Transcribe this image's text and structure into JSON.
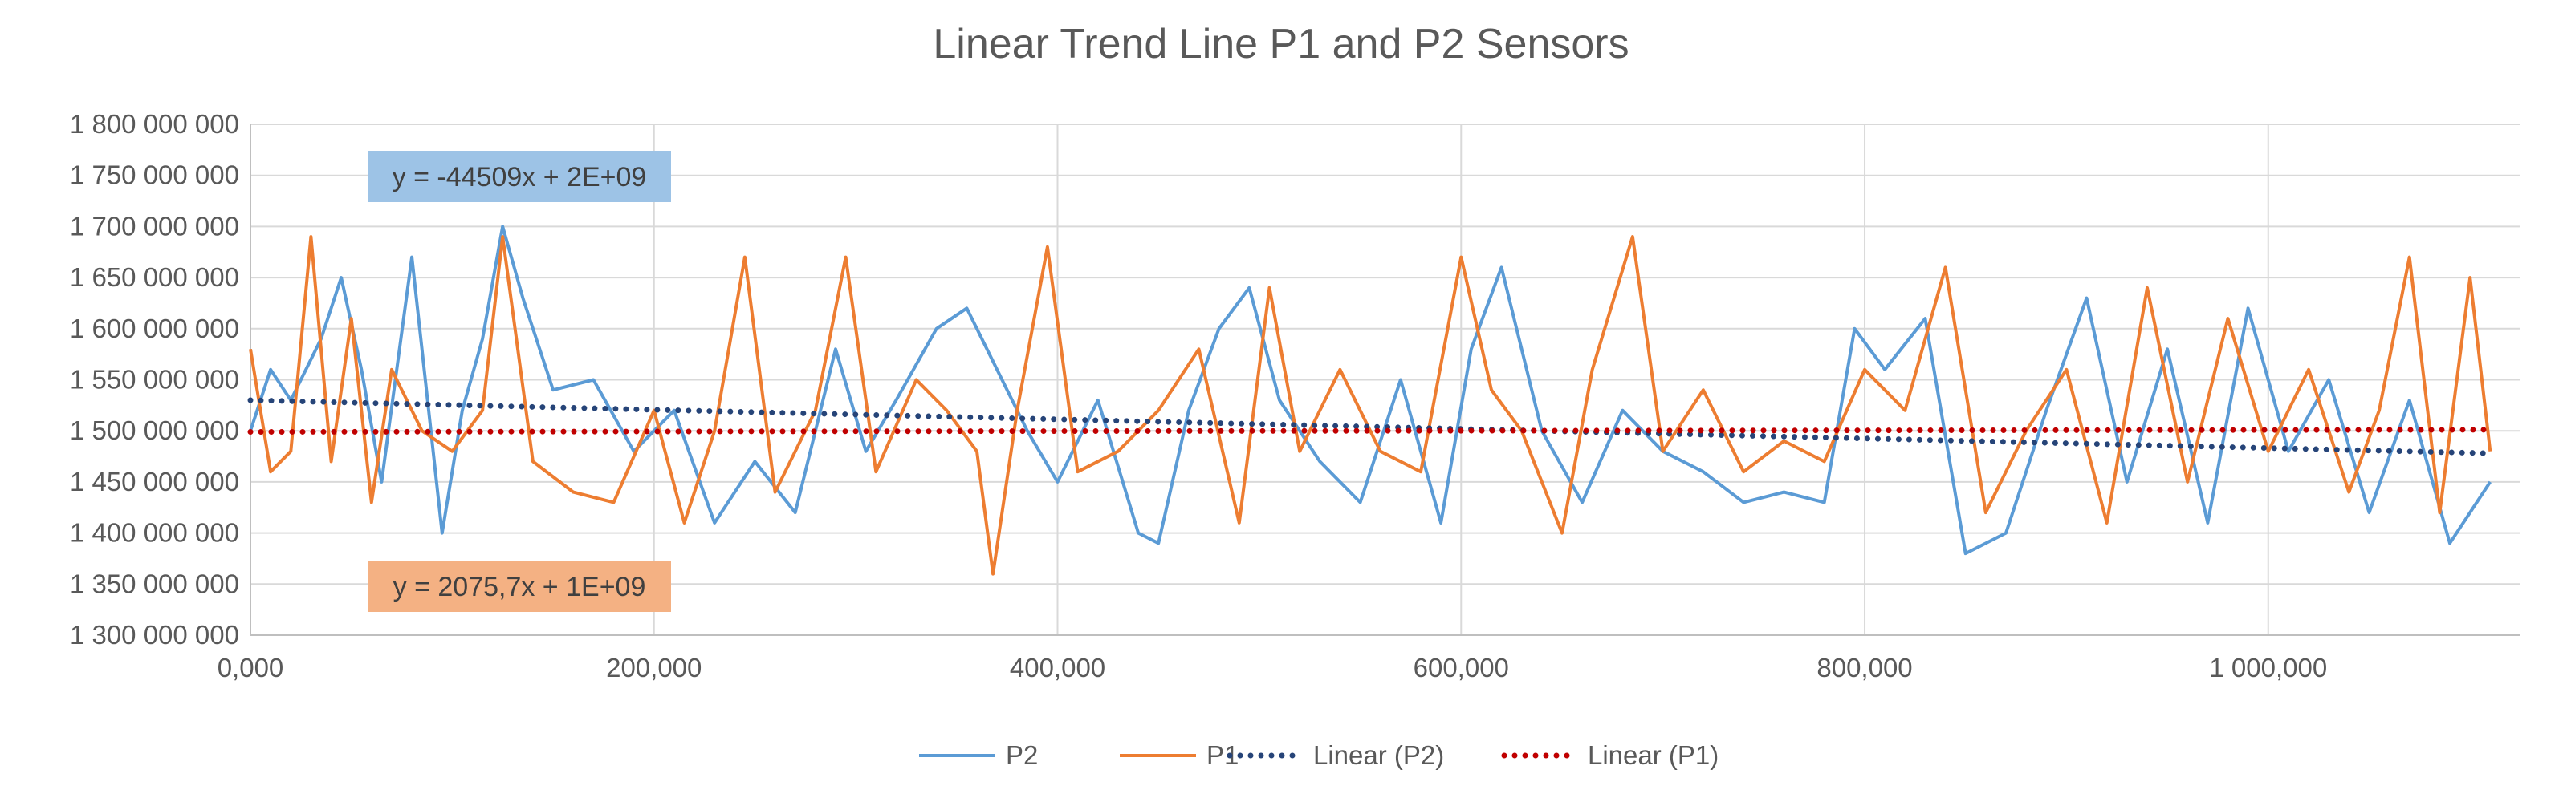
{
  "chart_data": {
    "type": "line",
    "title": "Linear Trend Line P1 and P2 Sensors",
    "xlabel": "",
    "ylabel": "",
    "xlim": [
      0,
      1125000
    ],
    "ylim": [
      1300000000,
      1800000000
    ],
    "grid": true,
    "legend_position": "bottom",
    "x_ticks": [
      {
        "value": 0,
        "label": "0,000"
      },
      {
        "value": 200000,
        "label": "200,000"
      },
      {
        "value": 400000,
        "label": "400,000"
      },
      {
        "value": 600000,
        "label": "600,000"
      },
      {
        "value": 800000,
        "label": "800,000"
      },
      {
        "value": 1000000,
        "label": "1 000,000"
      }
    ],
    "y_ticks": [
      {
        "value": 1800000000,
        "label": "1 800 000 000"
      },
      {
        "value": 1750000000,
        "label": "1 750 000 000"
      },
      {
        "value": 1700000000,
        "label": "1 700 000 000"
      },
      {
        "value": 1650000000,
        "label": "1 650 000 000"
      },
      {
        "value": 1600000000,
        "label": "1 600 000 000"
      },
      {
        "value": 1550000000,
        "label": "1 550 000 000"
      },
      {
        "value": 1500000000,
        "label": "1 500 000 000"
      },
      {
        "value": 1450000000,
        "label": "1 450 000 000"
      },
      {
        "value": 1400000000,
        "label": "1 400 000 000"
      },
      {
        "value": 1350000000,
        "label": "1 350 000 000"
      },
      {
        "value": 1300000000,
        "label": "1 300 000 000"
      }
    ],
    "series": [
      {
        "name": "P2",
        "color": "#5B9BD5",
        "style": "solid",
        "x": [
          0,
          10000,
          20000,
          35000,
          45000,
          55000,
          65000,
          80000,
          95000,
          105000,
          115000,
          125000,
          135000,
          150000,
          170000,
          190000,
          210000,
          230000,
          250000,
          270000,
          290000,
          305000,
          320000,
          340000,
          355000,
          370000,
          385000,
          400000,
          420000,
          440000,
          450000,
          465000,
          480000,
          495000,
          510000,
          530000,
          550000,
          570000,
          590000,
          605000,
          620000,
          640000,
          660000,
          680000,
          700000,
          720000,
          740000,
          760000,
          780000,
          795000,
          810000,
          830000,
          850000,
          870000,
          890000,
          910000,
          930000,
          950000,
          970000,
          990000,
          1010000,
          1030000,
          1050000,
          1070000,
          1090000,
          1110000
        ],
        "y": [
          1500000000,
          1560000000,
          1530000000,
          1590000000,
          1650000000,
          1560000000,
          1450000000,
          1670000000,
          1400000000,
          1520000000,
          1590000000,
          1700000000,
          1630000000,
          1540000000,
          1550000000,
          1480000000,
          1520000000,
          1410000000,
          1470000000,
          1420000000,
          1580000000,
          1480000000,
          1530000000,
          1600000000,
          1620000000,
          1560000000,
          1500000000,
          1450000000,
          1530000000,
          1400000000,
          1390000000,
          1520000000,
          1600000000,
          1640000000,
          1530000000,
          1470000000,
          1430000000,
          1550000000,
          1410000000,
          1580000000,
          1660000000,
          1500000000,
          1430000000,
          1520000000,
          1480000000,
          1460000000,
          1430000000,
          1440000000,
          1430000000,
          1600000000,
          1560000000,
          1610000000,
          1380000000,
          1400000000,
          1520000000,
          1630000000,
          1450000000,
          1580000000,
          1410000000,
          1620000000,
          1480000000,
          1550000000,
          1420000000,
          1530000000,
          1390000000,
          1450000000
        ]
      },
      {
        "name": "P1",
        "color": "#ED7D31",
        "style": "solid",
        "x": [
          0,
          10000,
          20000,
          30000,
          40000,
          50000,
          60000,
          70000,
          85000,
          100000,
          115000,
          125000,
          140000,
          160000,
          180000,
          200000,
          215000,
          230000,
          245000,
          260000,
          280000,
          295000,
          310000,
          330000,
          345000,
          360000,
          368000,
          380000,
          395000,
          410000,
          430000,
          450000,
          470000,
          490000,
          505000,
          520000,
          540000,
          560000,
          580000,
          600000,
          615000,
          630000,
          650000,
          665000,
          685000,
          700000,
          720000,
          740000,
          760000,
          780000,
          800000,
          820000,
          840000,
          860000,
          880000,
          900000,
          920000,
          940000,
          960000,
          980000,
          1000000,
          1020000,
          1040000,
          1055000,
          1070000,
          1085000,
          1100000,
          1110000
        ],
        "y": [
          1580000000,
          1460000000,
          1480000000,
          1690000000,
          1470000000,
          1610000000,
          1430000000,
          1560000000,
          1500000000,
          1480000000,
          1520000000,
          1690000000,
          1470000000,
          1440000000,
          1430000000,
          1520000000,
          1410000000,
          1500000000,
          1670000000,
          1440000000,
          1520000000,
          1670000000,
          1460000000,
          1550000000,
          1520000000,
          1480000000,
          1360000000,
          1520000000,
          1680000000,
          1460000000,
          1480000000,
          1520000000,
          1580000000,
          1410000000,
          1640000000,
          1480000000,
          1560000000,
          1480000000,
          1460000000,
          1670000000,
          1540000000,
          1500000000,
          1400000000,
          1560000000,
          1690000000,
          1480000000,
          1540000000,
          1460000000,
          1490000000,
          1470000000,
          1560000000,
          1520000000,
          1660000000,
          1420000000,
          1500000000,
          1560000000,
          1410000000,
          1640000000,
          1450000000,
          1610000000,
          1480000000,
          1560000000,
          1440000000,
          1520000000,
          1670000000,
          1420000000,
          1650000000,
          1480000000
        ]
      },
      {
        "name": "Linear (P2)",
        "color": "#264478",
        "style": "dotted",
        "x": [
          0,
          1110000
        ],
        "y": [
          1530000000,
          1478000000
        ]
      },
      {
        "name": "Linear (P1)",
        "color": "#C00000",
        "style": "dotted",
        "x": [
          0,
          1110000
        ],
        "y": [
          1499000000,
          1501000000
        ]
      }
    ],
    "annotations": [
      {
        "text": "y = -44509x + 2E+09",
        "box_color": "#9DC3E6"
      },
      {
        "text": "y = 2075,7x + 1E+09",
        "box_color": "#F4B183"
      }
    ]
  }
}
